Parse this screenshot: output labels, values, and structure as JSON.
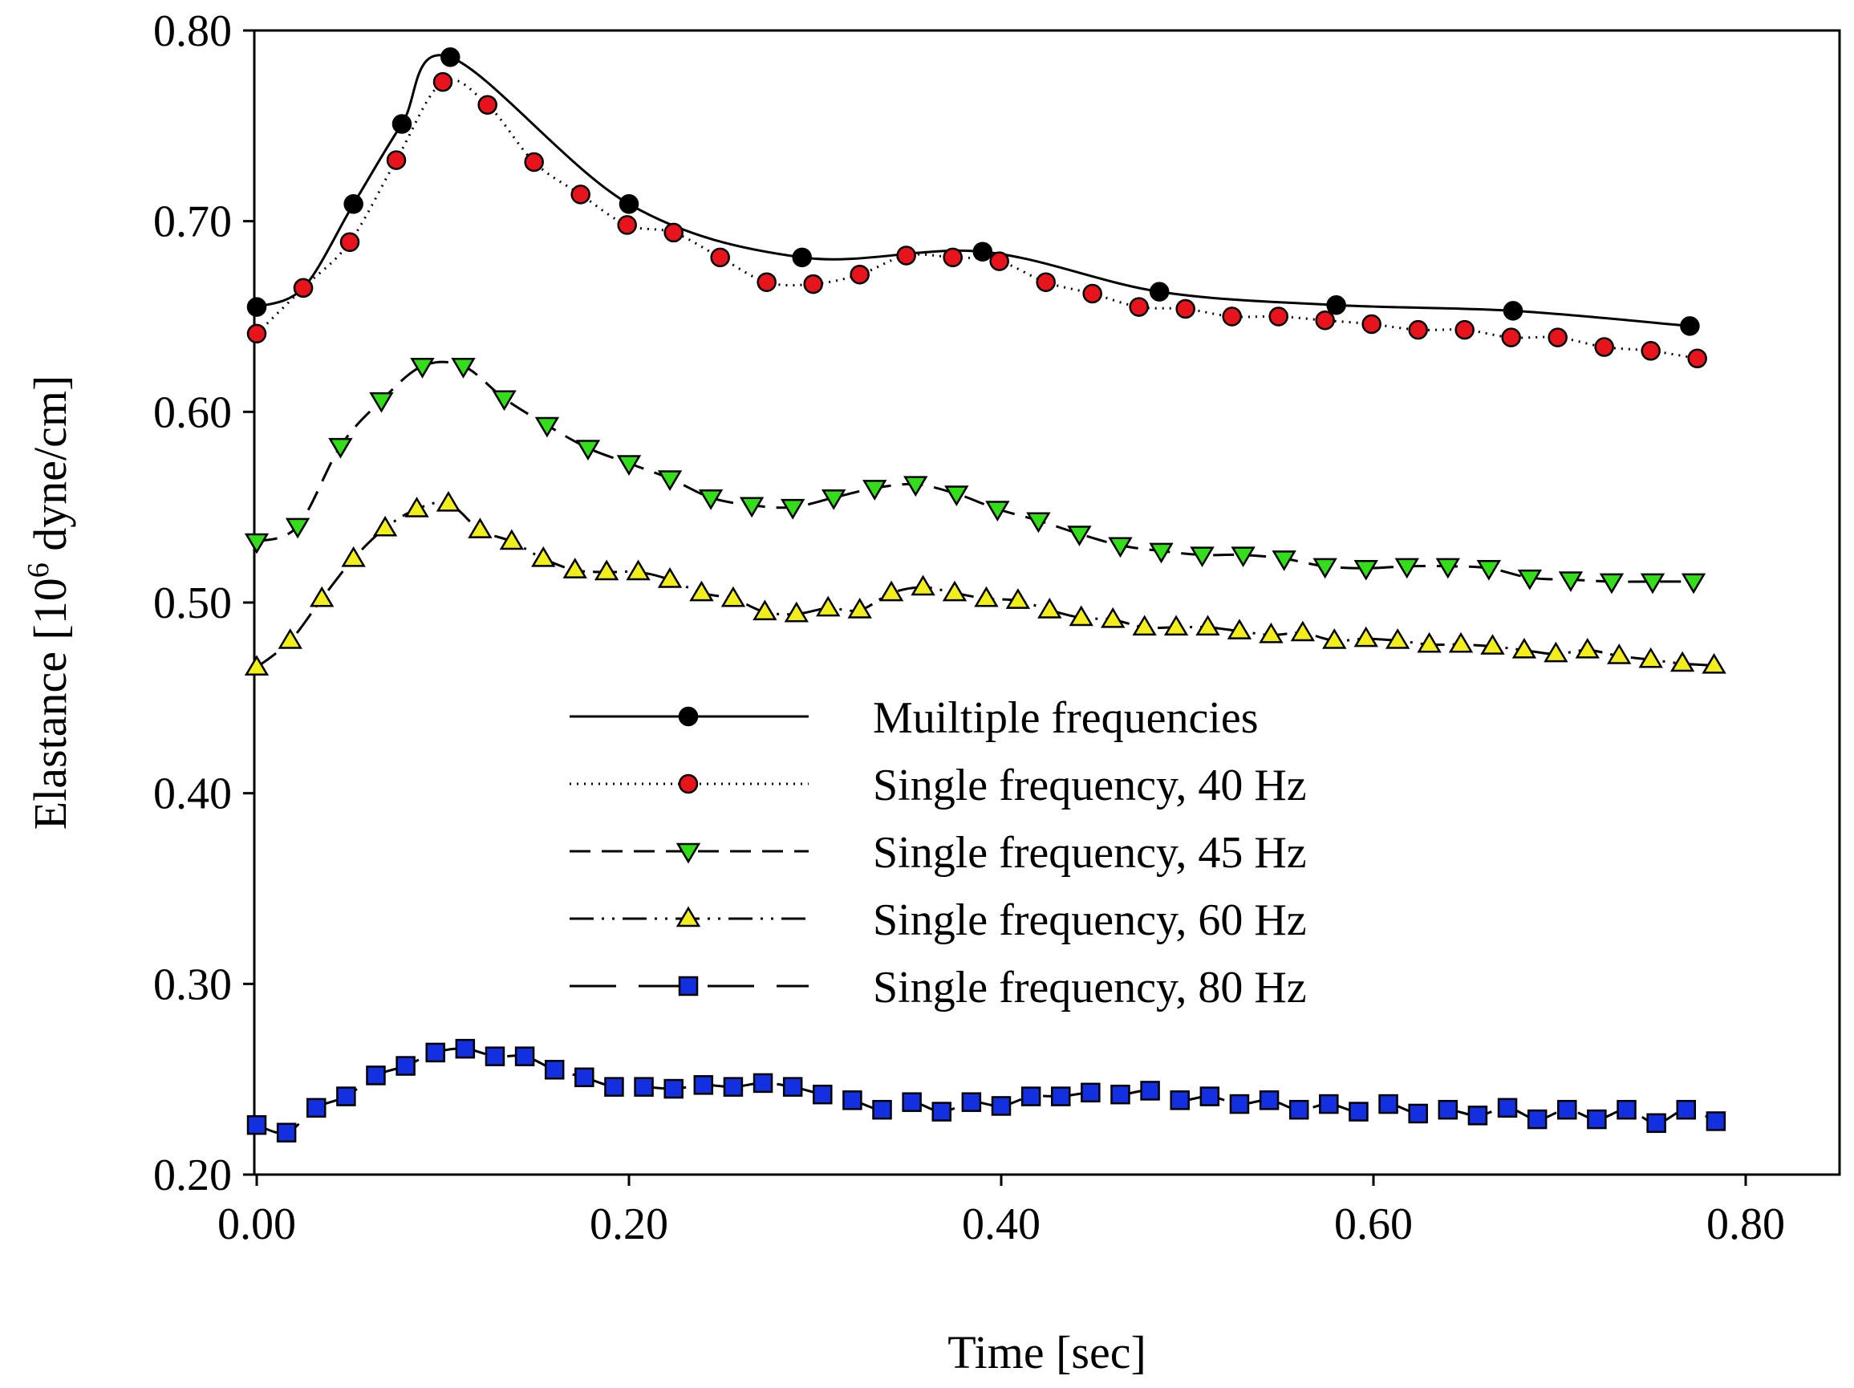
{
  "chart_data": {
    "type": "line",
    "title": "",
    "xlabel": "Time [sec]",
    "ylabel_main": "Elastance [10",
    "ylabel_sup": "6",
    "ylabel_rest": " dyne/cm]",
    "xlim": [
      0,
      0.85
    ],
    "ylim": [
      0.2,
      0.8
    ],
    "xticks": [
      0,
      0.2,
      0.4,
      0.6,
      0.8
    ],
    "xtick_labels": [
      "0.00",
      "0.20",
      "0.40",
      "0.60",
      "0.80"
    ],
    "yticks": [
      0.2,
      0.3,
      0.4,
      0.5,
      0.6,
      0.7,
      0.8
    ],
    "ytick_labels": [
      "0.20",
      "0.30",
      "0.40",
      "0.50",
      "0.60",
      "0.70",
      "0.80"
    ],
    "legend_position": "center",
    "series": [
      {
        "name": "Muiltiple frequencies",
        "line_style": "solid",
        "marker": "circle",
        "marker_color": "#000000",
        "x": [
          0,
          0.025,
          0.052,
          0.078,
          0.104,
          0.2,
          0.293,
          0.39,
          0.485,
          0.58,
          0.675,
          0.77
        ],
        "y": [
          0.655,
          0.665,
          0.709,
          0.751,
          0.786,
          0.709,
          0.681,
          0.684,
          0.663,
          0.656,
          0.653,
          0.645
        ]
      },
      {
        "name": "Single frequency, 40 Hz",
        "line_style": "dotted",
        "marker": "circle",
        "marker_color": "#e8141b",
        "x": [
          0,
          0.025,
          0.05,
          0.075,
          0.1,
          0.124,
          0.149,
          0.174,
          0.199,
          0.224,
          0.249,
          0.274,
          0.299,
          0.324,
          0.349,
          0.374,
          0.399,
          0.424,
          0.449,
          0.474,
          0.499,
          0.524,
          0.549,
          0.574,
          0.599,
          0.624,
          0.649,
          0.674,
          0.699,
          0.724,
          0.749,
          0.774
        ],
        "y": [
          0.641,
          0.665,
          0.689,
          0.732,
          0.773,
          0.761,
          0.731,
          0.714,
          0.698,
          0.694,
          0.681,
          0.668,
          0.667,
          0.672,
          0.682,
          0.681,
          0.679,
          0.668,
          0.662,
          0.655,
          0.654,
          0.65,
          0.65,
          0.648,
          0.646,
          0.643,
          0.643,
          0.639,
          0.639,
          0.634,
          0.632,
          0.628
        ]
      },
      {
        "name": "Single frequency, 45 Hz",
        "line_style": "dashed",
        "marker": "triangle-down",
        "marker_color": "#33dd1a",
        "x": [
          0,
          0.022,
          0.045,
          0.067,
          0.089,
          0.111,
          0.133,
          0.156,
          0.178,
          0.2,
          0.222,
          0.244,
          0.266,
          0.288,
          0.31,
          0.332,
          0.354,
          0.376,
          0.398,
          0.42,
          0.442,
          0.464,
          0.486,
          0.508,
          0.53,
          0.552,
          0.574,
          0.596,
          0.618,
          0.64,
          0.662,
          0.684,
          0.706,
          0.728,
          0.75,
          0.772
        ],
        "y": [
          0.532,
          0.54,
          0.582,
          0.606,
          0.624,
          0.624,
          0.607,
          0.593,
          0.581,
          0.573,
          0.565,
          0.555,
          0.551,
          0.55,
          0.555,
          0.56,
          0.562,
          0.557,
          0.549,
          0.543,
          0.536,
          0.53,
          0.527,
          0.525,
          0.525,
          0.523,
          0.519,
          0.518,
          0.519,
          0.519,
          0.518,
          0.513,
          0.512,
          0.511,
          0.511,
          0.511
        ]
      },
      {
        "name": "Single frequency, 60 Hz",
        "line_style": "dash-dot-dot",
        "marker": "triangle-up",
        "marker_color": "#f2ee1c",
        "x": [
          0,
          0.018,
          0.035,
          0.052,
          0.069,
          0.086,
          0.103,
          0.12,
          0.137,
          0.154,
          0.171,
          0.188,
          0.205,
          0.222,
          0.239,
          0.256,
          0.273,
          0.29,
          0.307,
          0.324,
          0.341,
          0.358,
          0.375,
          0.392,
          0.409,
          0.426,
          0.443,
          0.46,
          0.477,
          0.494,
          0.511,
          0.528,
          0.545,
          0.562,
          0.579,
          0.596,
          0.613,
          0.63,
          0.647,
          0.664,
          0.681,
          0.698,
          0.715,
          0.732,
          0.749,
          0.766,
          0.783
        ],
        "y": [
          0.466,
          0.48,
          0.502,
          0.523,
          0.539,
          0.549,
          0.552,
          0.538,
          0.532,
          0.523,
          0.517,
          0.516,
          0.516,
          0.512,
          0.505,
          0.502,
          0.495,
          0.494,
          0.497,
          0.496,
          0.505,
          0.508,
          0.505,
          0.502,
          0.501,
          0.496,
          0.492,
          0.491,
          0.487,
          0.487,
          0.487,
          0.485,
          0.483,
          0.484,
          0.48,
          0.481,
          0.48,
          0.478,
          0.478,
          0.477,
          0.475,
          0.473,
          0.475,
          0.472,
          0.47,
          0.468,
          0.467
        ]
      },
      {
        "name": "Single frequency, 80 Hz",
        "line_style": "long-dash",
        "marker": "square",
        "marker_color": "#1230e0",
        "x": [
          0,
          0.016,
          0.032,
          0.048,
          0.064,
          0.08,
          0.096,
          0.112,
          0.128,
          0.144,
          0.16,
          0.176,
          0.192,
          0.208,
          0.224,
          0.24,
          0.256,
          0.272,
          0.288,
          0.304,
          0.32,
          0.336,
          0.352,
          0.368,
          0.384,
          0.4,
          0.416,
          0.432,
          0.448,
          0.464,
          0.48,
          0.496,
          0.512,
          0.528,
          0.544,
          0.56,
          0.576,
          0.592,
          0.608,
          0.624,
          0.64,
          0.656,
          0.672,
          0.688,
          0.704,
          0.72,
          0.736,
          0.752,
          0.768,
          0.784
        ],
        "y": [
          0.226,
          0.222,
          0.235,
          0.241,
          0.252,
          0.257,
          0.264,
          0.266,
          0.262,
          0.262,
          0.255,
          0.251,
          0.246,
          0.246,
          0.245,
          0.247,
          0.246,
          0.248,
          0.246,
          0.242,
          0.239,
          0.234,
          0.238,
          0.233,
          0.238,
          0.236,
          0.241,
          0.241,
          0.243,
          0.242,
          0.244,
          0.239,
          0.241,
          0.237,
          0.239,
          0.234,
          0.237,
          0.233,
          0.237,
          0.232,
          0.234,
          0.231,
          0.235,
          0.229,
          0.234,
          0.229,
          0.234,
          0.227,
          0.234,
          0.228
        ]
      }
    ]
  }
}
